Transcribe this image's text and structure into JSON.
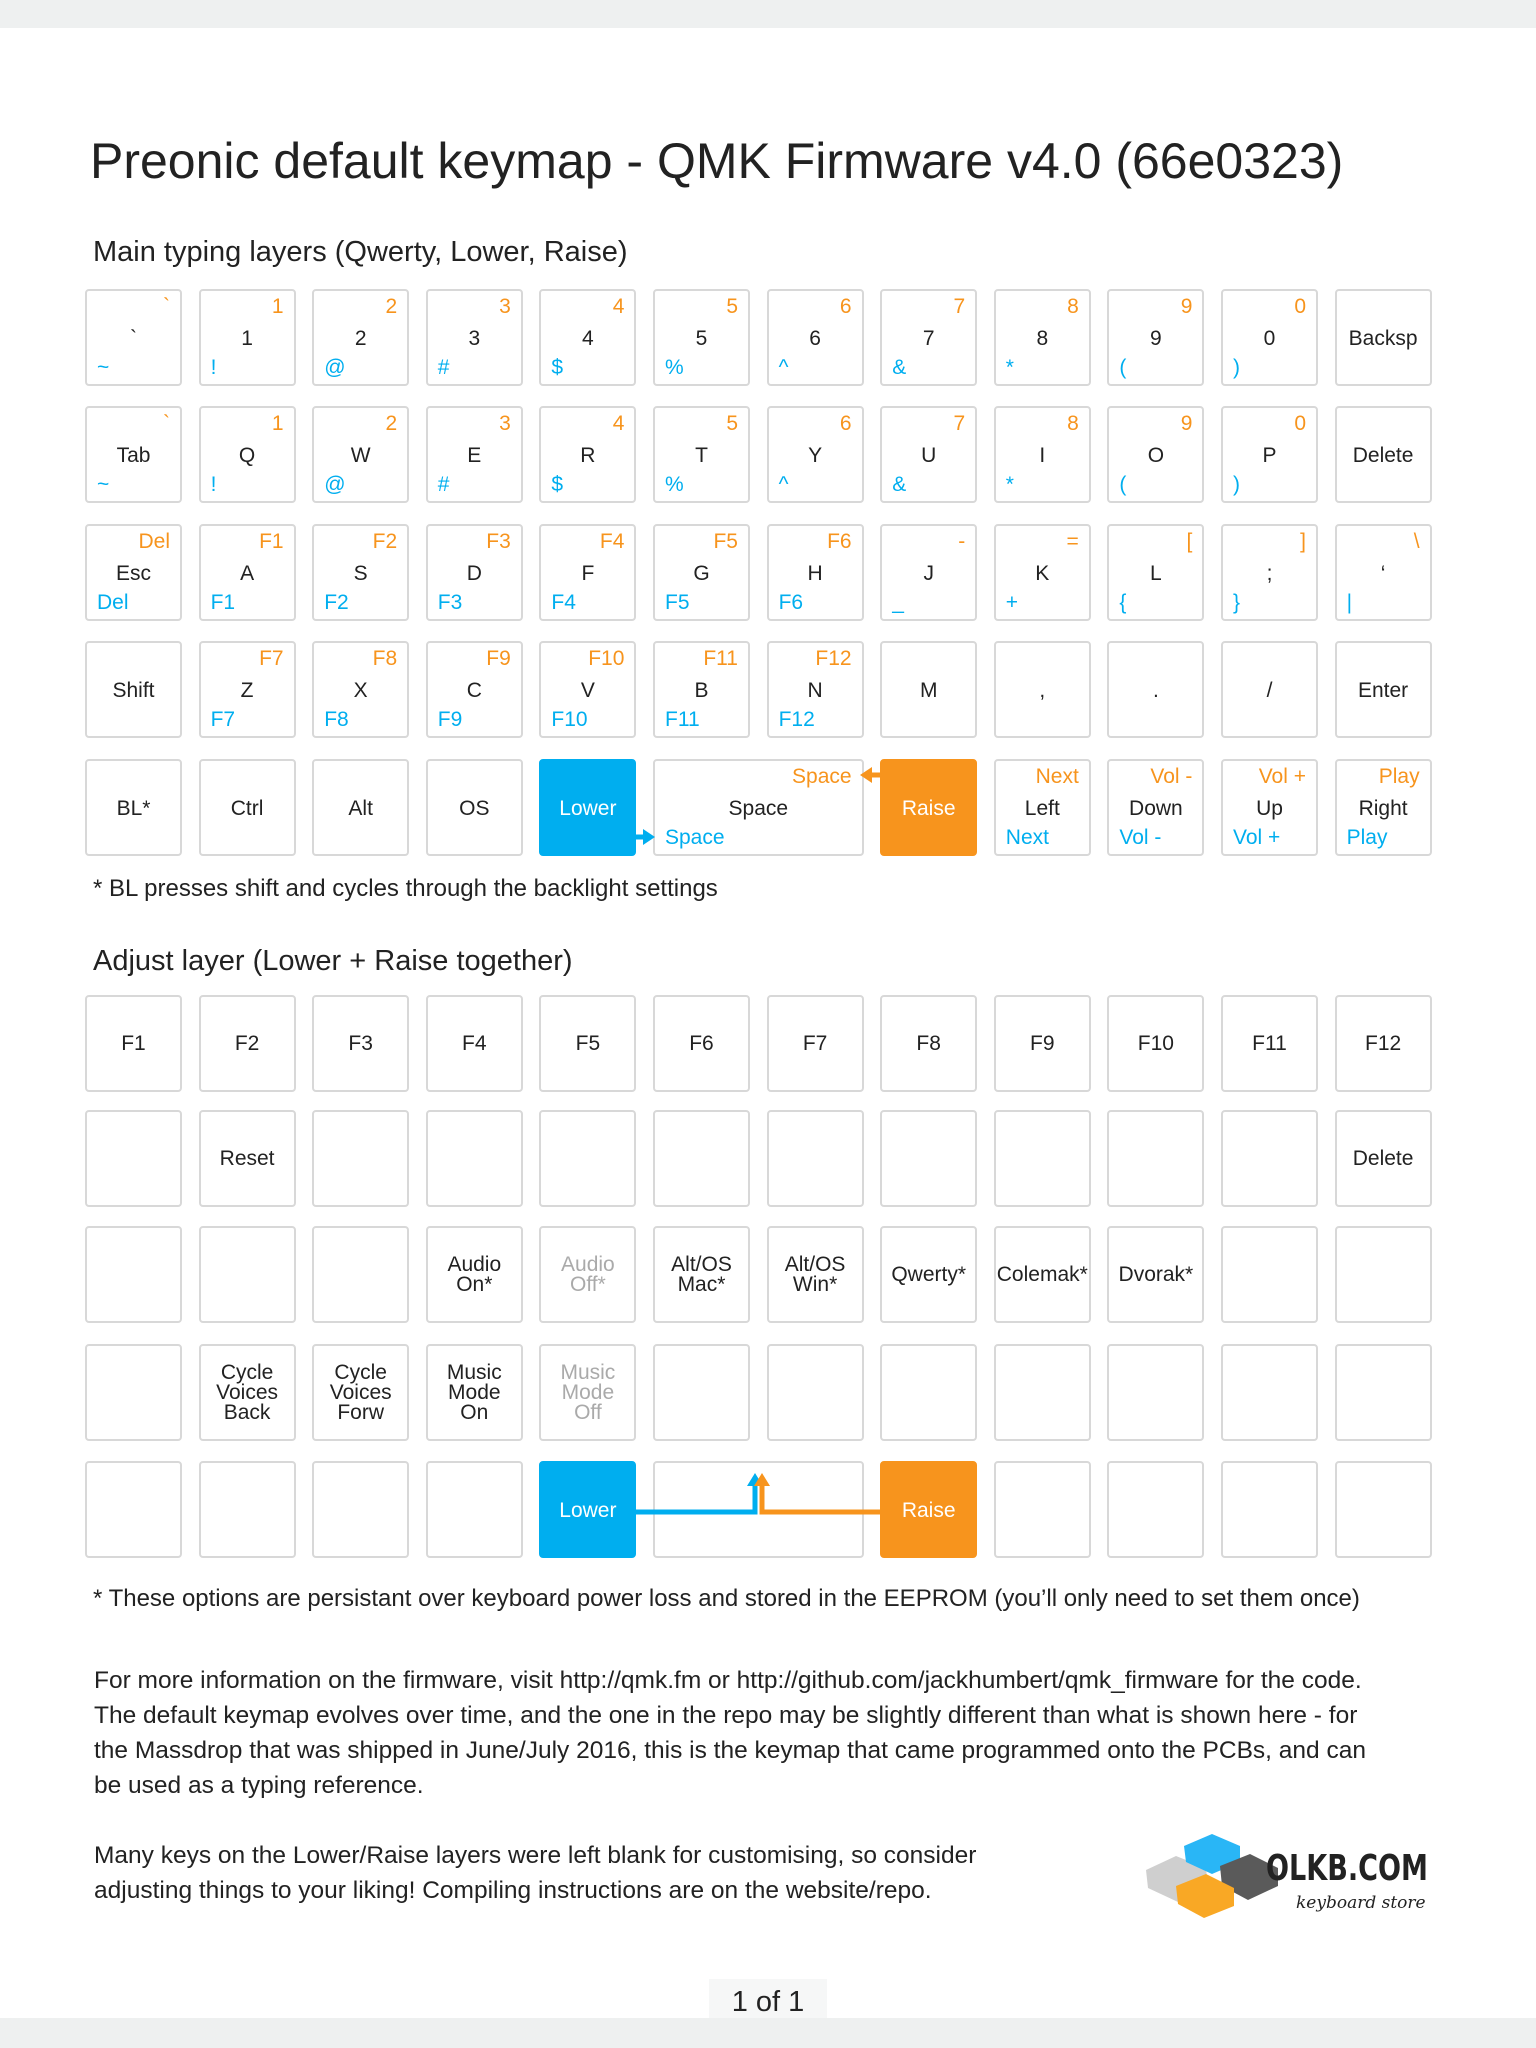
{
  "title": "Preonic default keymap - QMK Firmware v4.0 (66e0323)",
  "main_heading": "Main typing layers (Qwerty, Lower, Raise)",
  "main_rows": [
    [
      {
        "m": "`",
        "r": "`",
        "l": "~"
      },
      {
        "m": "1",
        "r": "1",
        "l": "!"
      },
      {
        "m": "2",
        "r": "2",
        "l": "@"
      },
      {
        "m": "3",
        "r": "3",
        "l": "#"
      },
      {
        "m": "4",
        "r": "4",
        "l": "$"
      },
      {
        "m": "5",
        "r": "5",
        "l": "%"
      },
      {
        "m": "6",
        "r": "6",
        "l": "^"
      },
      {
        "m": "7",
        "r": "7",
        "l": "&"
      },
      {
        "m": "8",
        "r": "8",
        "l": "*"
      },
      {
        "m": "9",
        "r": "9",
        "l": "("
      },
      {
        "m": "0",
        "r": "0",
        "l": ")"
      },
      {
        "m": "Backsp"
      }
    ],
    [
      {
        "m": "Tab",
        "r": "`",
        "l": "~"
      },
      {
        "m": "Q",
        "r": "1",
        "l": "!"
      },
      {
        "m": "W",
        "r": "2",
        "l": "@"
      },
      {
        "m": "E",
        "r": "3",
        "l": "#"
      },
      {
        "m": "R",
        "r": "4",
        "l": "$"
      },
      {
        "m": "T",
        "r": "5",
        "l": "%"
      },
      {
        "m": "Y",
        "r": "6",
        "l": "^"
      },
      {
        "m": "U",
        "r": "7",
        "l": "&"
      },
      {
        "m": "I",
        "r": "8",
        "l": "*"
      },
      {
        "m": "O",
        "r": "9",
        "l": "("
      },
      {
        "m": "P",
        "r": "0",
        "l": ")"
      },
      {
        "m": "Delete"
      }
    ],
    [
      {
        "m": "Esc",
        "r": "Del",
        "l": "Del"
      },
      {
        "m": "A",
        "r": "F1",
        "l": "F1"
      },
      {
        "m": "S",
        "r": "F2",
        "l": "F2"
      },
      {
        "m": "D",
        "r": "F3",
        "l": "F3"
      },
      {
        "m": "F",
        "r": "F4",
        "l": "F4"
      },
      {
        "m": "G",
        "r": "F5",
        "l": "F5"
      },
      {
        "m": "H",
        "r": "F6",
        "l": "F6"
      },
      {
        "m": "J",
        "r": "-",
        "l": "_"
      },
      {
        "m": "K",
        "r": "=",
        "l": "+"
      },
      {
        "m": "L",
        "r": "[",
        "l": "{"
      },
      {
        "m": ";",
        "r": "]",
        "l": "}"
      },
      {
        "m": "‘",
        "r": "\\",
        "l": "|"
      }
    ],
    [
      {
        "m": "Shift"
      },
      {
        "m": "Z",
        "r": "F7",
        "l": "F7"
      },
      {
        "m": "X",
        "r": "F8",
        "l": "F8"
      },
      {
        "m": "C",
        "r": "F9",
        "l": "F9"
      },
      {
        "m": "V",
        "r": "F10",
        "l": "F10"
      },
      {
        "m": "B",
        "r": "F11",
        "l": "F11"
      },
      {
        "m": "N",
        "r": "F12",
        "l": "F12"
      },
      {
        "m": "M"
      },
      {
        "m": ","
      },
      {
        "m": "."
      },
      {
        "m": "/"
      },
      {
        "m": "Enter"
      }
    ],
    [
      {
        "m": "BL*"
      },
      {
        "m": "Ctrl"
      },
      {
        "m": "Alt"
      },
      {
        "m": "OS"
      },
      {
        "m": "Lower",
        "s": "lower"
      },
      {
        "m": "Space",
        "r": "Space",
        "l": "Space",
        "span": 2
      },
      {
        "m": "Raise",
        "s": "raise"
      },
      {
        "m": "Left",
        "r": "Next",
        "l": "Next"
      },
      {
        "m": "Down",
        "r": "Vol -",
        "l": "Vol -"
      },
      {
        "m": "Up",
        "r": "Vol +",
        "l": "Vol +"
      },
      {
        "m": "Right",
        "r": "Play",
        "l": "Play"
      }
    ]
  ],
  "main_footnote": "* BL presses shift and cycles through the backlight settings",
  "adjust_heading": "Adjust layer (Lower + Raise together)",
  "adjust_rows": [
    [
      {
        "m": "F1"
      },
      {
        "m": "F2"
      },
      {
        "m": "F3"
      },
      {
        "m": "F4"
      },
      {
        "m": "F5"
      },
      {
        "m": "F6"
      },
      {
        "m": "F7"
      },
      {
        "m": "F8"
      },
      {
        "m": "F9"
      },
      {
        "m": "F10"
      },
      {
        "m": "F11"
      },
      {
        "m": "F12"
      }
    ],
    [
      {
        "m": ""
      },
      {
        "m": "Reset"
      },
      {
        "m": ""
      },
      {
        "m": ""
      },
      {
        "m": ""
      },
      {
        "m": ""
      },
      {
        "m": ""
      },
      {
        "m": ""
      },
      {
        "m": ""
      },
      {
        "m": ""
      },
      {
        "m": ""
      },
      {
        "m": "Delete"
      }
    ],
    [
      {
        "m": ""
      },
      {
        "m": ""
      },
      {
        "m": ""
      },
      {
        "m": "Audio\nOn*"
      },
      {
        "m": "Audio\nOff*",
        "dim": true
      },
      {
        "m": "Alt/OS\nMac*"
      },
      {
        "m": "Alt/OS\nWin*"
      },
      {
        "m": "Qwerty*"
      },
      {
        "m": "Colemak*"
      },
      {
        "m": "Dvorak*"
      },
      {
        "m": ""
      },
      {
        "m": ""
      }
    ],
    [
      {
        "m": ""
      },
      {
        "m": "Cycle\nVoices\nBack"
      },
      {
        "m": "Cycle\nVoices\nForw"
      },
      {
        "m": "Music\nMode\nOn"
      },
      {
        "m": "Music\nMode\nOff",
        "dim": true
      },
      {
        "m": ""
      },
      {
        "m": ""
      },
      {
        "m": ""
      },
      {
        "m": ""
      },
      {
        "m": ""
      },
      {
        "m": ""
      },
      {
        "m": ""
      }
    ],
    [
      {
        "m": ""
      },
      {
        "m": ""
      },
      {
        "m": ""
      },
      {
        "m": ""
      },
      {
        "m": "Lower",
        "s": "lower"
      },
      {
        "m": "",
        "span": 2
      },
      {
        "m": "Raise",
        "s": "raise"
      },
      {
        "m": ""
      },
      {
        "m": ""
      },
      {
        "m": ""
      },
      {
        "m": ""
      }
    ]
  ],
  "adjust_footnote": "* These options are persistant over keyboard power loss and stored in the EEPROM (you’ll only need to set them once)",
  "paragraph1": [
    "For more information on the firmware, visit http://qmk.fm or http://github.com/jackhumbert/qmk_firmware for the code.",
    "The default keymap evolves over time, and the one in the repo may be slightly different than what is shown here - for",
    "the Massdrop that was shipped in June/July 2016, this is the keymap that came programmed onto the PCBs, and can",
    "be used as a typing reference."
  ],
  "paragraph2": [
    "Many keys on the Lower/Raise layers were left blank for customising, so consider",
    "adjusting things to your liking! Compiling instructions are on the website/repo."
  ],
  "logo": {
    "name": "OLKB.COM",
    "tagline": "keyboard store"
  },
  "page_indicator": "1 of 1",
  "colors": {
    "lower": "#00aeef",
    "raise": "#f7941d",
    "key_border": "#d8d8d8",
    "text": "#222222"
  }
}
